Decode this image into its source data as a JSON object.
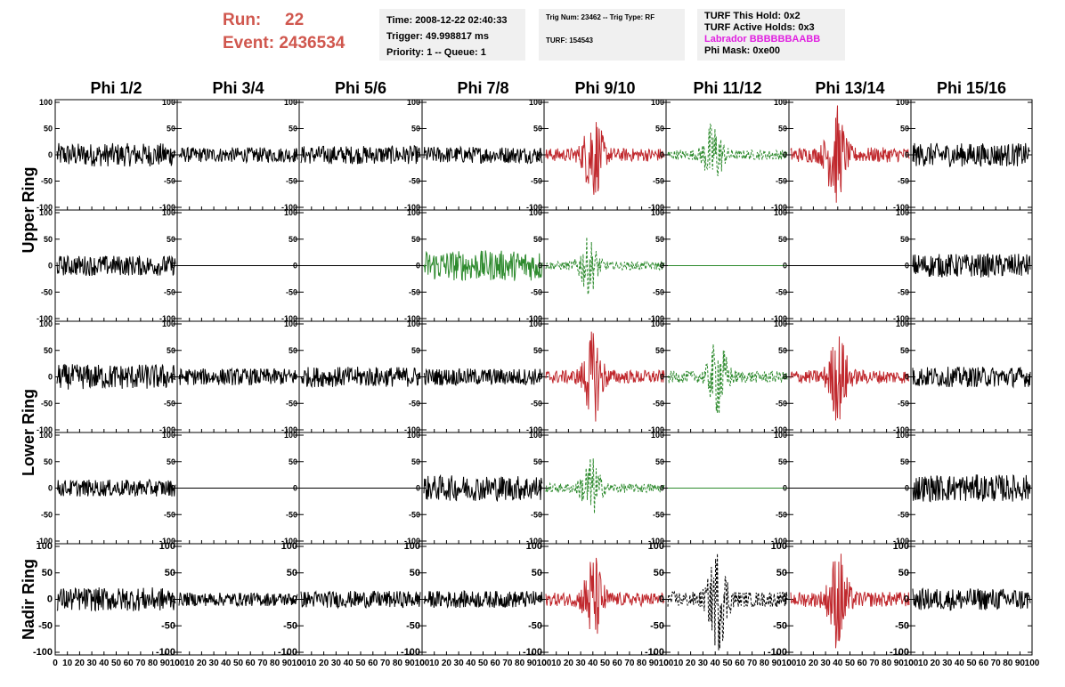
{
  "header": {
    "run_label": "Run:",
    "run_value": "22",
    "event_label": "Event:",
    "event_value": "2436534",
    "time": "Time: 2008-12-22 02:40:33",
    "trigger": "Trigger: 49.998817 ms",
    "priority": "Priority: 1 -- Queue: 1",
    "trig_num": "Trig Num: 23462 -- Trig Type: RF",
    "turf": "TURF: 154543",
    "turf_hold": "TURF This Hold: 0x2",
    "turf_active": "TURF Active Holds: 0x3",
    "labrador": "Labrador BBBBBBAABB",
    "phi_mask": "Phi Mask: 0xe00"
  },
  "chart_data": {
    "type": "line",
    "columns": [
      "Phi 1/2",
      "Phi 3/4",
      "Phi 5/6",
      "Phi 7/8",
      "Phi 9/10",
      "Phi 11/12",
      "Phi 13/14",
      "Phi 15/16"
    ],
    "ring_labels": [
      "Upper Ring",
      "Lower Ring",
      "Nadir Ring"
    ],
    "rows": 5,
    "x_ticks": [
      "0",
      "10",
      "20",
      "30",
      "40",
      "50",
      "60",
      "70",
      "80",
      "90",
      "100"
    ],
    "ylim": [
      -100,
      100
    ],
    "y_ticks_small": [
      "100",
      "50",
      "0",
      "-50",
      "-100"
    ],
    "x_range": [
      0,
      100
    ],
    "colors": {
      "black": "#000000",
      "red": "#c0282d",
      "green": "#2d8a2d"
    },
    "traces": [
      [
        {
          "color": "black",
          "style": "solid",
          "amp": 14,
          "burst": 0
        },
        {
          "color": "black",
          "style": "solid",
          "amp": 9,
          "burst": 0
        },
        {
          "color": "black",
          "style": "solid",
          "amp": 11,
          "burst": 0
        },
        {
          "color": "black",
          "style": "solid",
          "amp": 10,
          "burst": 0
        },
        {
          "color": "red",
          "style": "solid",
          "amp": 16,
          "burst": 40
        },
        {
          "color": "green",
          "style": "dashed",
          "amp": 12,
          "burst": 38
        },
        {
          "color": "red",
          "style": "solid",
          "amp": 18,
          "burst": 38
        },
        {
          "color": "black",
          "style": "solid",
          "amp": 14,
          "burst": 0
        }
      ],
      [
        {
          "color": "black",
          "style": "solid",
          "amp": 12,
          "burst": 0
        },
        {
          "color": "black",
          "style": "flat",
          "amp": 0,
          "burst": 0
        },
        {
          "color": "black",
          "style": "flat",
          "amp": 0,
          "burst": 0
        },
        {
          "color": "green",
          "style": "solid",
          "amp": 18,
          "burst": 0
        },
        {
          "color": "green",
          "style": "dashed",
          "amp": 10,
          "burst": 36
        },
        {
          "color": "green",
          "style": "flat",
          "amp": 0,
          "burst": 0
        },
        {
          "color": "black",
          "style": "flat",
          "amp": 0,
          "burst": 0
        },
        {
          "color": "black",
          "style": "solid",
          "amp": 14,
          "burst": 0
        }
      ],
      [
        {
          "color": "black",
          "style": "solid",
          "amp": 15,
          "burst": 0
        },
        {
          "color": "black",
          "style": "solid",
          "amp": 10,
          "burst": 0
        },
        {
          "color": "black",
          "style": "solid",
          "amp": 12,
          "burst": 0
        },
        {
          "color": "black",
          "style": "solid",
          "amp": 10,
          "burst": 0
        },
        {
          "color": "red",
          "style": "solid",
          "amp": 16,
          "burst": 40
        },
        {
          "color": "green",
          "style": "dashed",
          "amp": 14,
          "burst": 42
        },
        {
          "color": "red",
          "style": "solid",
          "amp": 16,
          "burst": 40
        },
        {
          "color": "black",
          "style": "solid",
          "amp": 12,
          "burst": 0
        }
      ],
      [
        {
          "color": "black",
          "style": "solid",
          "amp": 10,
          "burst": 0
        },
        {
          "color": "black",
          "style": "flat",
          "amp": 0,
          "burst": 0
        },
        {
          "color": "black",
          "style": "flat",
          "amp": 0,
          "burst": 0
        },
        {
          "color": "black",
          "style": "solid",
          "amp": 15,
          "burst": 0
        },
        {
          "color": "green",
          "style": "dashed",
          "amp": 11,
          "burst": 38
        },
        {
          "color": "green",
          "style": "flat",
          "amp": 0,
          "burst": 0
        },
        {
          "color": "black",
          "style": "flat",
          "amp": 0,
          "burst": 0
        },
        {
          "color": "black",
          "style": "solid",
          "amp": 16,
          "burst": 0
        }
      ],
      [
        {
          "color": "black",
          "style": "solid",
          "amp": 14,
          "burst": 0
        },
        {
          "color": "black",
          "style": "solid",
          "amp": 8,
          "burst": 0
        },
        {
          "color": "black",
          "style": "solid",
          "amp": 10,
          "burst": 0
        },
        {
          "color": "black",
          "style": "solid",
          "amp": 10,
          "burst": 0
        },
        {
          "color": "red",
          "style": "solid",
          "amp": 16,
          "burst": 40
        },
        {
          "color": "black",
          "style": "dashed",
          "amp": 18,
          "burst": 42
        },
        {
          "color": "red",
          "style": "solid",
          "amp": 18,
          "burst": 40
        },
        {
          "color": "black",
          "style": "solid",
          "amp": 13,
          "burst": 0
        }
      ]
    ]
  }
}
